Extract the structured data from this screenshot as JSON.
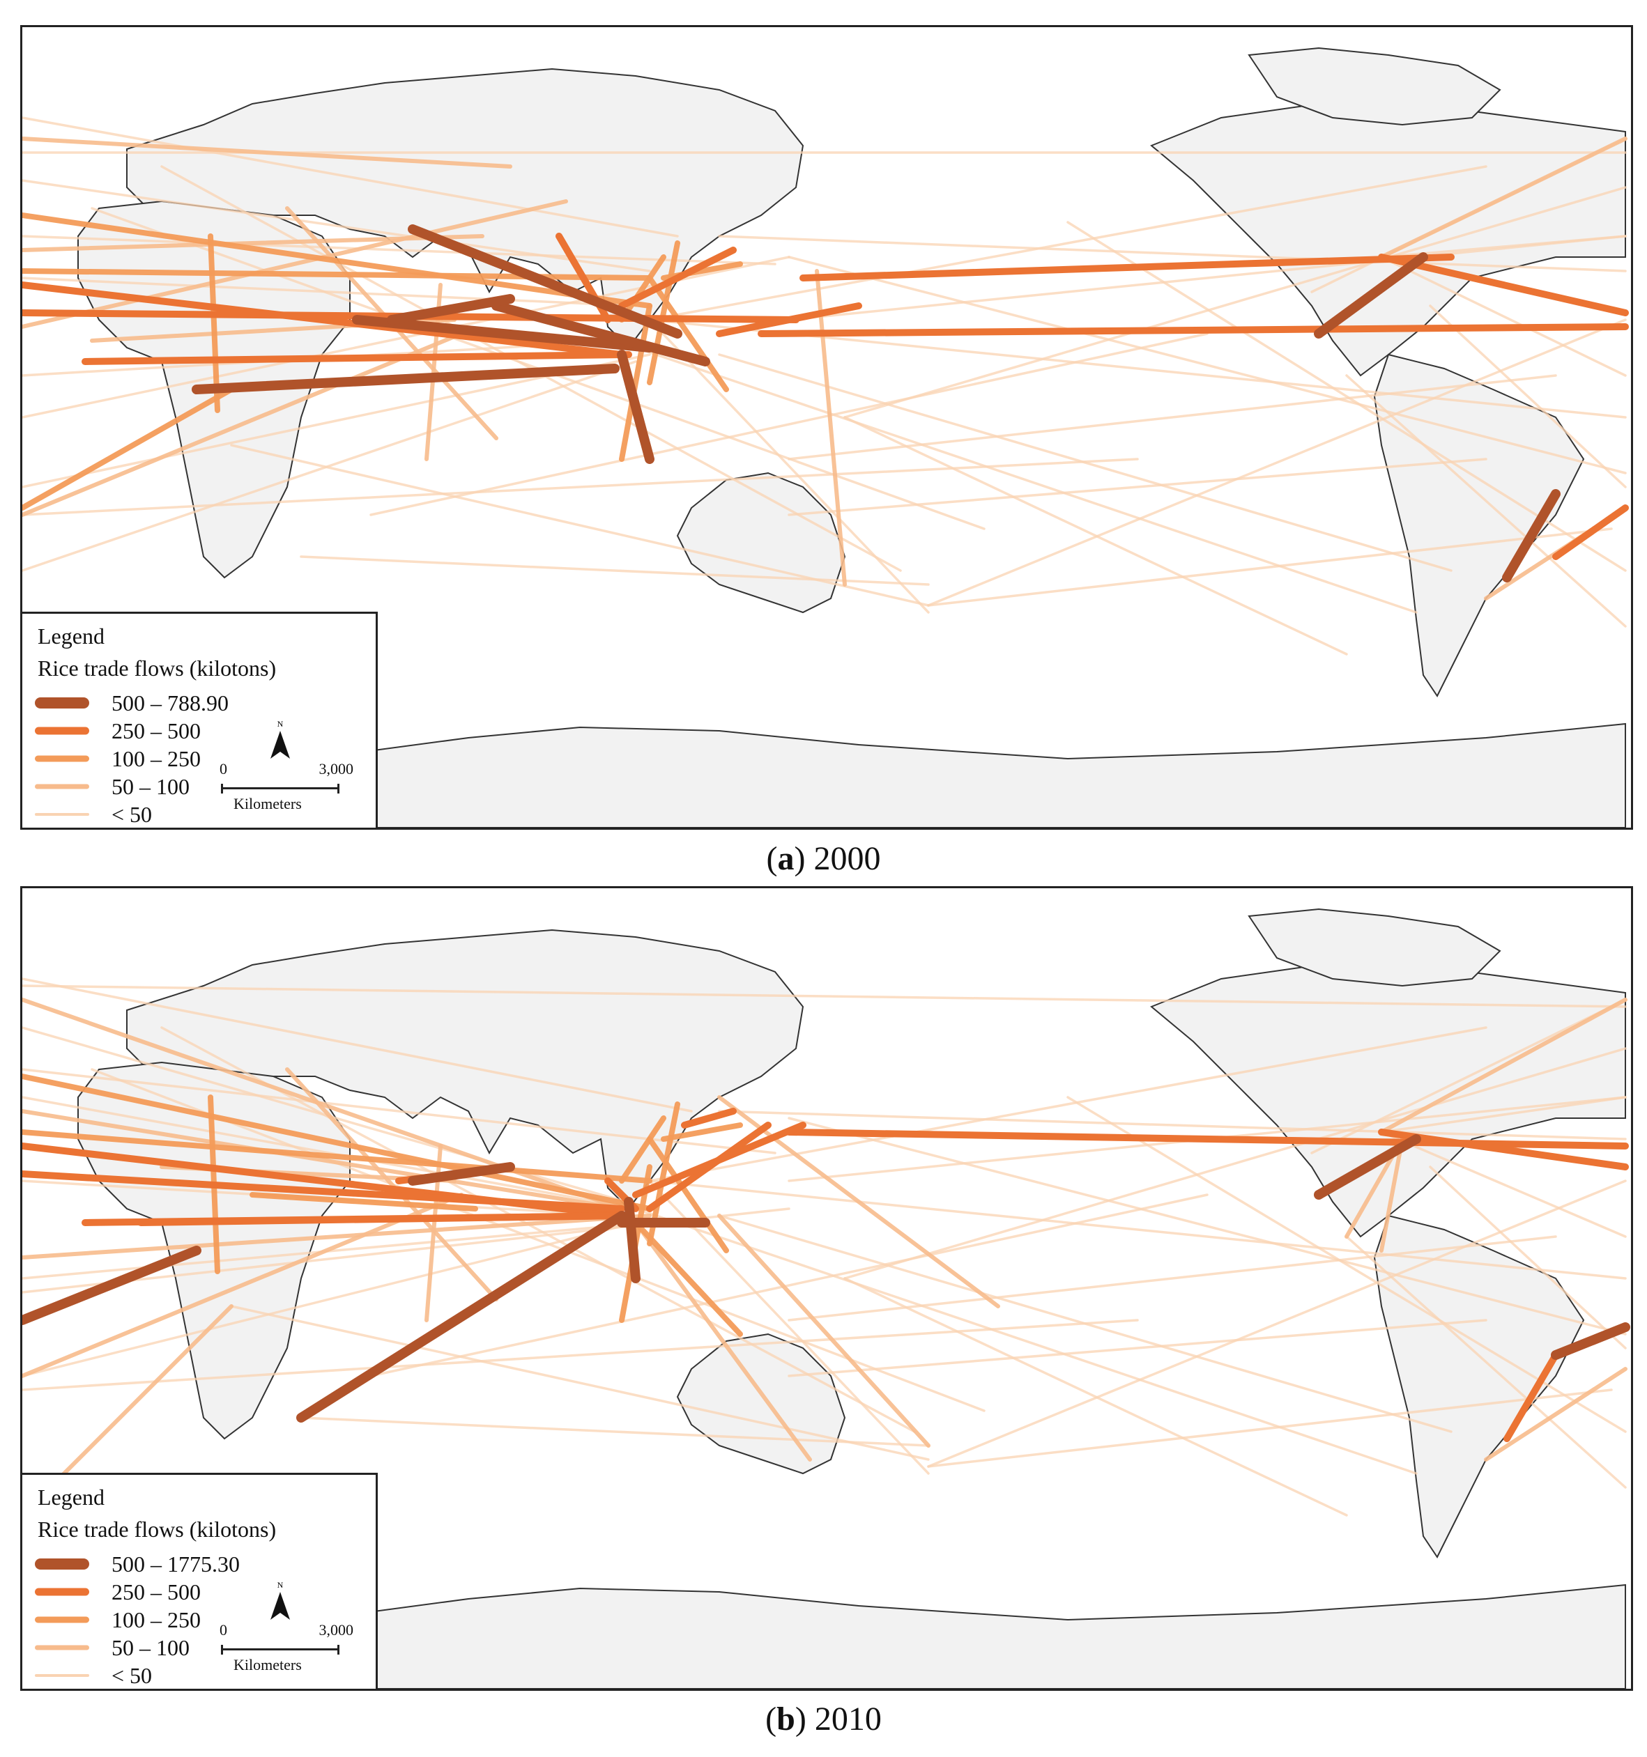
{
  "figure": {
    "panels": [
      {
        "caption_letter": "a",
        "caption_year": "2000",
        "legend": {
          "title": "Legend",
          "subtitle": "Rice trade flows (kilotons)",
          "classes": [
            {
              "label": "500 – 788.90",
              "color": "#B0532A"
            },
            {
              "label": "250 – 500",
              "color": "#EB7333"
            },
            {
              "label": "100 – 250",
              "color": "#F39B59"
            },
            {
              "label": "50 – 100",
              "color": "#F7BB8C"
            },
            {
              "label": "< 50",
              "color": "#F9D3B2"
            }
          ],
          "north_label": "N",
          "scale_start": "0",
          "scale_end": "3,000",
          "scale_unit": "Kilometers"
        }
      },
      {
        "caption_letter": "b",
        "caption_year": "2010",
        "legend": {
          "title": "Legend",
          "subtitle": "Rice trade flows (kilotons)",
          "classes": [
            {
              "label": "500 – 1775.30",
              "color": "#B0532A"
            },
            {
              "label": "250 – 500",
              "color": "#EB7333"
            },
            {
              "label": "100 – 250",
              "color": "#F39B59"
            },
            {
              "label": "50 – 100",
              "color": "#F7BB8C"
            },
            {
              "label": "< 50",
              "color": "#F9D3B2"
            }
          ],
          "north_label": "N",
          "scale_start": "0",
          "scale_end": "3,000",
          "scale_unit": "Kilometers"
        }
      }
    ]
  },
  "colors": {
    "land": "#F2F2F2",
    "coast": "#333333",
    "ocean": "#FFFFFF"
  }
}
